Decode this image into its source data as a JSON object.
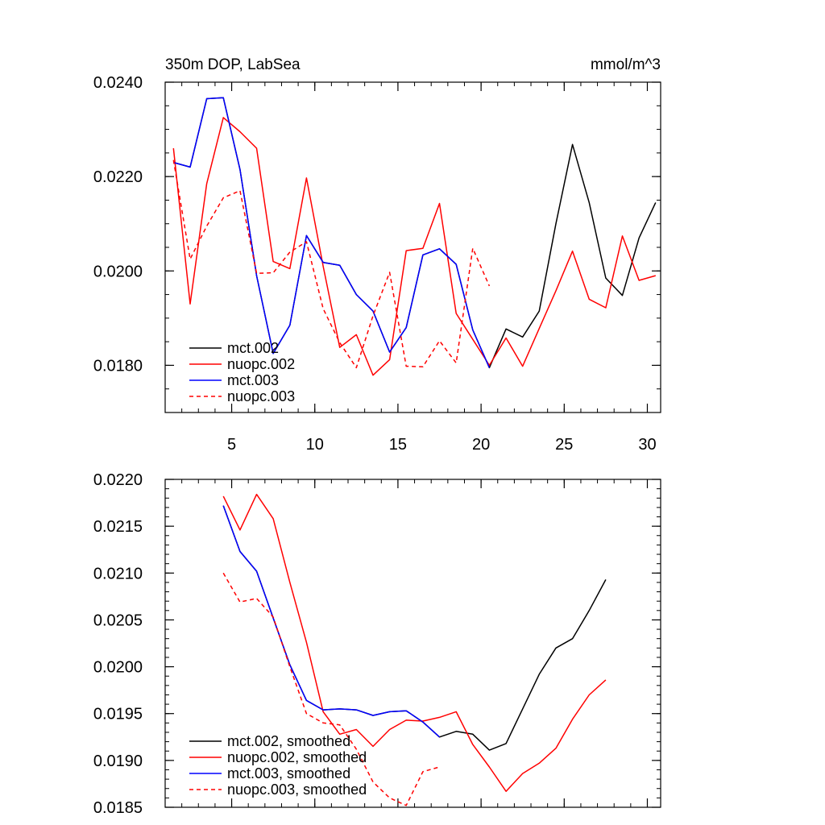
{
  "chart_data": [
    {
      "type": "line",
      "title": "350m DOP, LabSea",
      "units_label": "mmol/m^3",
      "xlim": [
        1.0,
        30.8
      ],
      "ylim": [
        0.017,
        0.024
      ],
      "x_ticks": [
        5,
        10,
        15,
        20,
        25,
        30
      ],
      "x_tick_labels": [
        "5",
        "10",
        "15",
        "20",
        "25",
        "30"
      ],
      "y_ticks": [
        0.018,
        0.02,
        0.022,
        0.024
      ],
      "y_tick_labels": [
        "0.0180",
        "0.0200",
        "0.0220",
        "0.0240"
      ],
      "legend_position": "bottom-left",
      "series": [
        {
          "name": "mct.002",
          "color": "#000000",
          "dash": "solid",
          "x": [
            1.5,
            2.5,
            3.5,
            4.5,
            5.5,
            6.5,
            7.5,
            8.5,
            9.5,
            10.5,
            11.5,
            12.5,
            13.5,
            14.5,
            15.5,
            16.5,
            17.5,
            18.5,
            19.5,
            20.5,
            21.5,
            22.5,
            23.5,
            24.5,
            25.5,
            26.5,
            27.5,
            28.5,
            29.5,
            30.5
          ],
          "values": [
            0.0223,
            0.0222,
            0.02365,
            0.02367,
            0.02215,
            0.0199,
            0.01825,
            0.01885,
            0.02075,
            0.02018,
            0.02012,
            0.0195,
            0.01915,
            0.01828,
            0.0188,
            0.02034,
            0.02047,
            0.02014,
            0.01875,
            0.01795,
            0.01877,
            0.0186,
            0.01915,
            0.021,
            0.02268,
            0.02145,
            0.01985,
            0.01948,
            0.0207,
            0.02145
          ]
        },
        {
          "name": "nuopc.002",
          "color": "#ff0000",
          "dash": "solid",
          "x": [
            1.5,
            2.5,
            3.5,
            4.5,
            5.5,
            6.5,
            7.5,
            8.5,
            9.5,
            10.5,
            11.5,
            12.5,
            13.5,
            14.5,
            15.5,
            16.5,
            17.5,
            18.5,
            19.5,
            20.5,
            21.5,
            22.5,
            23.5,
            24.5,
            25.5,
            26.5,
            27.5,
            28.5,
            29.5,
            30.5
          ],
          "values": [
            0.0226,
            0.0193,
            0.02185,
            0.02325,
            0.02295,
            0.0226,
            0.0202,
            0.02005,
            0.02197,
            0.0201,
            0.01838,
            0.01865,
            0.01779,
            0.01812,
            0.02043,
            0.02048,
            0.02143,
            0.0191,
            0.01855,
            0.018,
            0.01858,
            0.01798,
            0.01878,
            0.01958,
            0.02042,
            0.0194,
            0.01922,
            0.02074,
            0.0198,
            0.0199
          ]
        },
        {
          "name": "mct.003",
          "color": "#0000ff",
          "dash": "solid",
          "x": [
            1.5,
            2.5,
            3.5,
            4.5,
            5.5,
            6.5,
            7.5,
            8.5,
            9.5,
            10.5,
            11.5,
            12.5,
            13.5,
            14.5,
            15.5,
            16.5,
            17.5,
            18.5,
            19.5,
            20.5
          ],
          "values": [
            0.0223,
            0.0222,
            0.02365,
            0.02367,
            0.02215,
            0.0199,
            0.01825,
            0.01885,
            0.02075,
            0.02018,
            0.02012,
            0.0195,
            0.01915,
            0.01828,
            0.0188,
            0.02034,
            0.02047,
            0.02014,
            0.01875,
            0.01795
          ]
        },
        {
          "name": "nuopc.003",
          "color": "#ff0000",
          "dash": "dashed",
          "x": [
            1.5,
            2.5,
            3.5,
            4.5,
            5.5,
            6.5,
            7.5,
            8.5,
            9.5,
            10.5,
            11.5,
            12.5,
            13.5,
            14.5,
            15.5,
            16.5,
            17.5,
            18.5,
            19.5,
            20.5
          ],
          "values": [
            0.02235,
            0.02025,
            0.02095,
            0.02155,
            0.0217,
            0.01995,
            0.01996,
            0.0204,
            0.02062,
            0.0192,
            0.01848,
            0.01795,
            0.01905,
            0.01997,
            0.01798,
            0.01797,
            0.01852,
            0.01805,
            0.02048,
            0.01968
          ]
        }
      ]
    },
    {
      "type": "line",
      "title": "",
      "xlim": [
        1.0,
        30.8
      ],
      "ylim": [
        0.0185,
        0.022
      ],
      "x_ticks": [
        5,
        10,
        15,
        20,
        25,
        30
      ],
      "x_tick_labels": [],
      "y_ticks": [
        0.0185,
        0.019,
        0.0195,
        0.02,
        0.0205,
        0.021,
        0.0215,
        0.022
      ],
      "y_tick_labels": [
        "0.0185",
        "0.0190",
        "0.0195",
        "0.0200",
        "0.0205",
        "0.0210",
        "0.0215",
        "0.0220"
      ],
      "legend_position": "bottom-left",
      "series": [
        {
          "name": "mct.002, smoothed",
          "color": "#000000",
          "dash": "solid",
          "x": [
            4.5,
            5.5,
            6.5,
            7.5,
            8.5,
            9.5,
            10.5,
            11.5,
            12.5,
            13.5,
            14.5,
            15.5,
            16.5,
            17.5,
            18.5,
            19.5,
            20.5,
            21.5,
            22.5,
            23.5,
            24.5,
            25.5,
            26.5,
            27.5
          ],
          "values": [
            0.02172,
            0.02123,
            0.02102,
            0.02052,
            0.02002,
            0.01964,
            0.01954,
            0.01955,
            0.01954,
            0.01948,
            0.01952,
            0.01953,
            0.01941,
            0.01925,
            0.01931,
            0.01928,
            0.01911,
            0.01918,
            0.01955,
            0.01992,
            0.0202,
            0.0203,
            0.0206,
            0.02093
          ]
        },
        {
          "name": "nuopc.002, smoothed",
          "color": "#ff0000",
          "dash": "solid",
          "x": [
            4.5,
            5.5,
            6.5,
            7.5,
            8.5,
            9.5,
            10.5,
            11.5,
            12.5,
            13.5,
            14.5,
            15.5,
            16.5,
            17.5,
            18.5,
            19.5,
            20.5,
            21.5,
            22.5,
            23.5,
            24.5,
            25.5,
            26.5,
            27.5
          ],
          "values": [
            0.02182,
            0.02146,
            0.02184,
            0.02158,
            0.0209,
            0.02026,
            0.01952,
            0.01928,
            0.01933,
            0.01915,
            0.01933,
            0.01943,
            0.01942,
            0.01946,
            0.01952,
            0.01917,
            0.01893,
            0.01867,
            0.01886,
            0.01897,
            0.01913,
            0.01944,
            0.0197,
            0.01986
          ]
        },
        {
          "name": "mct.003, smoothed",
          "color": "#0000ff",
          "dash": "solid",
          "x": [
            4.5,
            5.5,
            6.5,
            7.5,
            8.5,
            9.5,
            10.5,
            11.5,
            12.5,
            13.5,
            14.5,
            15.5,
            16.5,
            17.5
          ],
          "values": [
            0.02172,
            0.02123,
            0.02102,
            0.02052,
            0.02002,
            0.01964,
            0.01954,
            0.01955,
            0.01954,
            0.01948,
            0.01952,
            0.01953,
            0.01941,
            0.01925
          ]
        },
        {
          "name": "nuopc.003, smoothed",
          "color": "#ff0000",
          "dash": "dashed",
          "x": [
            4.5,
            5.5,
            6.5,
            7.5,
            8.5,
            9.5,
            10.5,
            11.5,
            12.5,
            13.5,
            14.5,
            15.5,
            16.5,
            17.5
          ],
          "values": [
            0.021,
            0.02069,
            0.02073,
            0.02053,
            0.02,
            0.0195,
            0.0194,
            0.01938,
            0.01912,
            0.01877,
            0.0186,
            0.01852,
            0.01888,
            0.01893
          ]
        }
      ]
    }
  ]
}
